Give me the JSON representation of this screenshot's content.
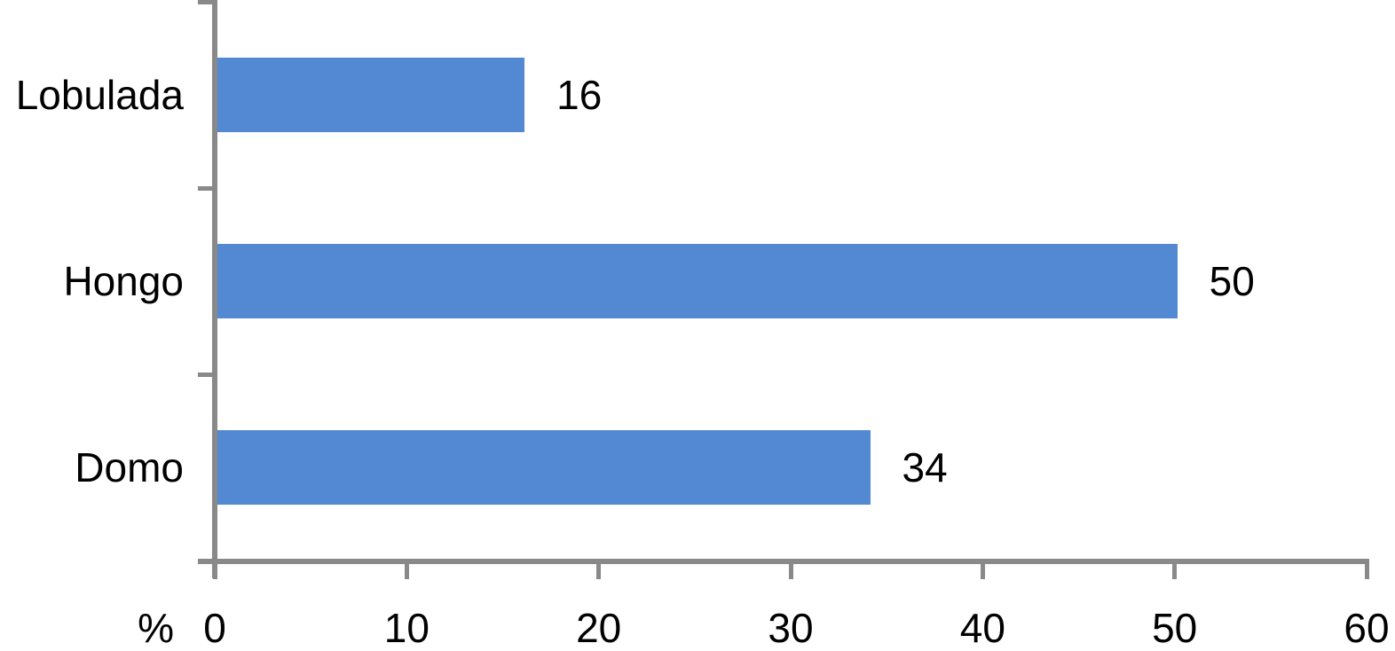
{
  "chart_data": {
    "type": "bar",
    "orientation": "horizontal",
    "categories": [
      "Lobulada",
      "Hongo",
      "Domo"
    ],
    "values": [
      16,
      50,
      34
    ],
    "data_labels": [
      "16",
      "50",
      "34"
    ],
    "title": "",
    "xlabel": "%",
    "ylabel": "",
    "xlim": [
      0,
      60
    ],
    "xticks": [
      0,
      10,
      20,
      30,
      40,
      50,
      60
    ],
    "grid": false,
    "legend": false,
    "bar_color": "#5289D2",
    "axis_color": "#898989",
    "text_color": "#000000",
    "background_color": "#FFFFFF"
  }
}
